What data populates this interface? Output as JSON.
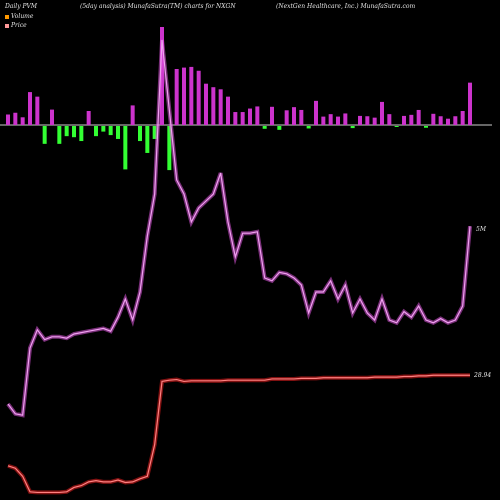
{
  "header": {
    "left": "Daily PVM",
    "center": "(5day analysis) MunafaSutra(TM) charts for NXGN",
    "right": "(NextGen Healthcare, Inc.) MunafaSutra.com"
  },
  "legend": [
    {
      "label": "Volume",
      "color": "#ff9900"
    },
    {
      "label": "Price",
      "color": "#ff9999"
    }
  ],
  "colors": {
    "volume_up": "#cc33cc",
    "volume_down": "#33ff33",
    "volume_line": "#dd55dd",
    "price_line": "#ff2222",
    "baseline": "#cccccc"
  },
  "chart_data": {
    "type": "bar",
    "x": [
      1,
      2,
      3,
      4,
      5,
      6,
      7,
      8,
      9,
      10,
      11,
      12,
      13,
      14,
      15,
      16,
      17,
      18,
      19,
      20,
      21,
      22,
      23,
      24,
      25,
      26,
      27,
      28,
      29,
      30,
      31,
      32,
      33,
      34,
      35,
      36,
      37,
      38,
      39,
      40,
      41,
      42,
      43,
      44,
      45,
      46,
      47,
      48,
      49,
      50,
      51,
      52,
      53,
      54,
      55,
      56,
      57,
      58,
      59,
      60,
      61,
      62,
      63,
      64
    ],
    "series": [
      {
        "name": "Volume",
        "values": [
          0.4,
          0.33,
          0.32,
          0.8,
          0.93,
          0.86,
          0.88,
          0.88,
          0.87,
          0.9,
          0.91,
          0.92,
          0.93,
          0.94,
          0.92,
          1.02,
          1.15,
          1.0,
          1.2,
          1.6,
          1.9,
          3.0,
          2.5,
          2.0,
          1.9,
          1.7,
          1.8,
          1.85,
          1.9,
          2.05,
          1.7,
          1.45,
          1.62,
          1.62,
          1.63,
          1.3,
          1.28,
          1.34,
          1.33,
          1.3,
          1.25,
          1.05,
          1.2,
          1.2,
          1.28,
          1.15,
          1.25,
          1.05,
          1.15,
          1.05,
          1.0,
          1.15,
          1.0,
          0.98,
          1.06,
          1.02,
          1.1,
          1.0,
          0.98,
          1.01,
          0.98,
          1.0,
          1.1,
          1.67
        ],
        "bar_direction": [
          "up",
          "up",
          "up",
          "up",
          "up",
          "down",
          "up",
          "down",
          "down",
          "down",
          "down",
          "up",
          "down",
          "down",
          "down",
          "down",
          "down",
          "up",
          "down",
          "down",
          "down",
          "up",
          "down",
          "up",
          "up",
          "up",
          "up",
          "up",
          "up",
          "up",
          "up",
          "up",
          "up",
          "up",
          "up",
          "down",
          "up",
          "down",
          "up",
          "up",
          "up",
          "down",
          "up",
          "up",
          "up",
          "up",
          "up",
          "down",
          "up",
          "up",
          "up",
          "up",
          "up",
          "down",
          "up",
          "up",
          "up",
          "down",
          "up",
          "up",
          "up",
          "up",
          "up",
          "up"
        ],
        "bar_size": [
          0.3,
          0.35,
          0.22,
          0.94,
          0.81,
          0.51,
          0.44,
          0.51,
          0.29,
          0.32,
          0.43,
          0.4,
          0.29,
          0.16,
          0.26,
          0.37,
          1.24,
          0.56,
          0.43,
          0.77,
          0.37,
          2.8,
          1.26,
          1.6,
          1.64,
          1.66,
          1.55,
          1.18,
          1.08,
          1.02,
          0.81,
          0.37,
          0.37,
          0.47,
          0.53,
          0.08,
          0.52,
          0.11,
          0.42,
          0.51,
          0.43,
          0.07,
          0.69,
          0.24,
          0.31,
          0.24,
          0.33,
          0.06,
          0.26,
          0.25,
          0.21,
          0.66,
          0.31,
          0.02,
          0.26,
          0.29,
          0.43,
          0.05,
          0.32,
          0.25,
          0.18,
          0.25,
          0.4,
          1.21
        ]
      },
      {
        "name": "Price",
        "values": [
          5.2,
          4.8,
          3.5,
          1.0,
          0.9,
          0.9,
          0.9,
          0.9,
          1.0,
          1.7,
          2.0,
          2.6,
          2.8,
          2.6,
          2.6,
          2.9,
          2.5,
          2.6,
          3.1,
          3.5,
          8.6,
          18.8,
          19.0,
          19.1,
          18.8,
          18.9,
          18.9,
          18.9,
          18.9,
          18.9,
          19.0,
          19.0,
          19.0,
          19.0,
          19.0,
          19.0,
          19.2,
          19.2,
          19.2,
          19.2,
          19.3,
          19.3,
          19.3,
          19.4,
          19.4,
          19.4,
          19.4,
          19.4,
          19.4,
          19.4,
          19.5,
          19.5,
          19.5,
          19.5,
          19.6,
          19.6,
          19.7,
          19.7,
          19.8,
          19.8,
          19.8,
          19.8,
          19.8,
          19.8
        ]
      }
    ],
    "volume_label": "5M",
    "price_label": "28.94"
  }
}
